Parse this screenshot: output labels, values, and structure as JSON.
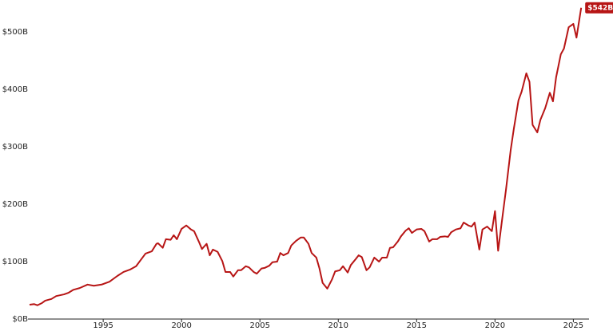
{
  "chart_data": {
    "type": "line",
    "x": [
      1990.3,
      1990.6,
      1990.8,
      1991.1,
      1991.3,
      1991.7,
      1992.0,
      1992.5,
      1992.8,
      1993.1,
      1993.5,
      1994.0,
      1994.4,
      1994.9,
      1995.4,
      1995.9,
      1996.3,
      1996.7,
      1997.1,
      1997.4,
      1997.7,
      1998.1,
      1998.4,
      1998.5,
      1998.8,
      1999.0,
      1999.3,
      1999.5,
      1999.7,
      2000.0,
      2000.3,
      2000.6,
      2000.8,
      2001.1,
      2001.3,
      2001.6,
      2001.8,
      2002.0,
      2002.3,
      2002.6,
      2002.8,
      2003.1,
      2003.3,
      2003.6,
      2003.8,
      2004.1,
      2004.3,
      2004.6,
      2004.8,
      2005.1,
      2005.3,
      2005.6,
      2005.8,
      2006.1,
      2006.3,
      2006.5,
      2006.8,
      2007.0,
      2007.3,
      2007.6,
      2007.8,
      2008.1,
      2008.3,
      2008.6,
      2008.8,
      2009.0,
      2009.3,
      2009.6,
      2009.8,
      2010.1,
      2010.3,
      2010.6,
      2010.8,
      2011.1,
      2011.3,
      2011.5,
      2011.8,
      2012.0,
      2012.3,
      2012.6,
      2012.8,
      2013.1,
      2013.3,
      2013.5,
      2013.8,
      2014.0,
      2014.3,
      2014.5,
      2014.7,
      2015.0,
      2015.3,
      2015.5,
      2015.8,
      2016.0,
      2016.3,
      2016.5,
      2016.8,
      2017.0,
      2017.2,
      2017.5,
      2017.8,
      2018.0,
      2018.3,
      2018.5,
      2018.7,
      2019.0,
      2019.2,
      2019.5,
      2019.8,
      2020.0,
      2020.2,
      2020.5,
      2020.7,
      2021.0,
      2021.2,
      2021.5,
      2021.7,
      2022.0,
      2022.2,
      2022.4,
      2022.7,
      2022.9,
      2023.2,
      2023.5,
      2023.7,
      2023.9,
      2024.2,
      2024.4,
      2024.7,
      2025.0,
      2025.2,
      2025.5
    ],
    "series": [
      {
        "color": "#b71515",
        "values": [
          25,
          26,
          24,
          28,
          32,
          35,
          40,
          43,
          46,
          51,
          54,
          60,
          58,
          60,
          65,
          75,
          82,
          86,
          92,
          103,
          114,
          118,
          131,
          132,
          124,
          139,
          138,
          146,
          139,
          157,
          163,
          156,
          153,
          135,
          122,
          131,
          111,
          121,
          117,
          101,
          82,
          82,
          74,
          85,
          85,
          92,
          90,
          82,
          79,
          88,
          89,
          93,
          99,
          100,
          115,
          111,
          115,
          128,
          136,
          142,
          142,
          131,
          115,
          107,
          88,
          63,
          53,
          69,
          83,
          85,
          92,
          81,
          94,
          104,
          111,
          108,
          85,
          90,
          107,
          100,
          107,
          107,
          124,
          125,
          135,
          144,
          154,
          158,
          150,
          156,
          157,
          153,
          135,
          139,
          139,
          143,
          144,
          143,
          151,
          156,
          158,
          168,
          163,
          161,
          168,
          121,
          156,
          161,
          153,
          188,
          119,
          183,
          225,
          294,
          331,
          381,
          396,
          428,
          413,
          338,
          325,
          347,
          367,
          394,
          379,
          421,
          461,
          471,
          508,
          514,
          490,
          542
        ],
        "value_labels": [
          null,
          null,
          null,
          null,
          null,
          null,
          null,
          null,
          null,
          null,
          null,
          null,
          null,
          null,
          null,
          null,
          null,
          null,
          null,
          null,
          null,
          null,
          null,
          null,
          null,
          null,
          null,
          null,
          null,
          null,
          null,
          null,
          null,
          null,
          null,
          null,
          null,
          null,
          null,
          null,
          null,
          null,
          null,
          null,
          null,
          null,
          null,
          null,
          null,
          null,
          null,
          null,
          null,
          null,
          null,
          null,
          null,
          null,
          null,
          null,
          null,
          null,
          null,
          null,
          null,
          null,
          null,
          null,
          null,
          null,
          null,
          null,
          null,
          null,
          null,
          null,
          null,
          null,
          null,
          null,
          null,
          null,
          null,
          null,
          null,
          null,
          null,
          null,
          null,
          null,
          null,
          null,
          null,
          null,
          null,
          null,
          null,
          null,
          null,
          null,
          null,
          null,
          null,
          null,
          null,
          null,
          null,
          null,
          null,
          null,
          null,
          null,
          null,
          null,
          null,
          null,
          null,
          null,
          null,
          null,
          null,
          null,
          null,
          null,
          null,
          null,
          null,
          null,
          null,
          null,
          null,
          "$542B"
        ]
      }
    ],
    "xlim": [
      1990.2,
      2026.0
    ],
    "xticks": [
      1995,
      2000,
      2005,
      2010,
      2015,
      2020,
      2025
    ],
    "ylim": [
      0,
      550
    ],
    "yticks": [
      {
        "value": 0,
        "label": "$0B"
      },
      {
        "value": 100,
        "label": "$100B"
      },
      {
        "value": 200,
        "label": "$200B"
      },
      {
        "value": 300,
        "label": "$300B"
      },
      {
        "value": 400,
        "label": "$400B"
      },
      {
        "value": 500,
        "label": "$500B"
      }
    ],
    "grid": false
  }
}
